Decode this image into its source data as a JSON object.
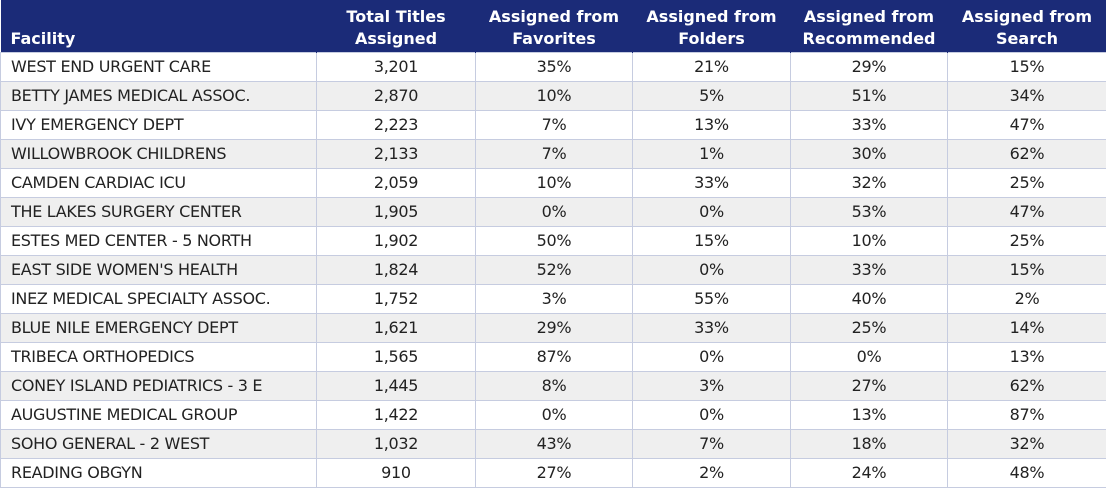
{
  "table": {
    "header": [
      "Facility",
      "Total Titles\nAssigned",
      "Assigned from\nFavorites",
      "Assigned from\nFolders",
      "Assigned from\nRecommended",
      "Assigned from\nSearch"
    ],
    "rows": [
      [
        "WEST END URGENT CARE",
        "3,201",
        "35%",
        "21%",
        "29%",
        "15%"
      ],
      [
        "BETTY JAMES MEDICAL ASSOC.",
        "2,870",
        "10%",
        "5%",
        "51%",
        "34%"
      ],
      [
        "IVY EMERGENCY DEPT",
        "2,223",
        "7%",
        "13%",
        "33%",
        "47%"
      ],
      [
        "WILLOWBROOK CHILDRENS",
        "2,133",
        "7%",
        "1%",
        "30%",
        "62%"
      ],
      [
        "CAMDEN CARDIAC ICU",
        "2,059",
        "10%",
        "33%",
        "32%",
        "25%"
      ],
      [
        "THE LAKES SURGERY CENTER",
        "1,905",
        "0%",
        "0%",
        "53%",
        "47%"
      ],
      [
        "ESTES MED CENTER - 5 NORTH",
        "1,902",
        "50%",
        "15%",
        "10%",
        "25%"
      ],
      [
        "EAST SIDE WOMEN'S HEALTH",
        "1,824",
        "52%",
        "0%",
        "33%",
        "15%"
      ],
      [
        "INEZ MEDICAL SPECIALTY ASSOC.",
        "1,752",
        "3%",
        "55%",
        "40%",
        "2%"
      ],
      [
        "BLUE NILE EMERGENCY DEPT",
        "1,621",
        "29%",
        "33%",
        "25%",
        "14%"
      ],
      [
        "TRIBECA ORTHOPEDICS",
        "1,565",
        "87%",
        "0%",
        "0%",
        "13%"
      ],
      [
        "CONEY ISLAND  PEDIATRICS - 3 E",
        "1,445",
        "8%",
        "3%",
        "27%",
        "62%"
      ],
      [
        "AUGUSTINE MEDICAL GROUP",
        "1,422",
        "0%",
        "0%",
        "13%",
        "87%"
      ],
      [
        "SOHO GENERAL - 2 WEST",
        "1,032",
        "43%",
        "7%",
        "18%",
        "32%"
      ],
      [
        "READING OBGYN",
        "910",
        "27%",
        "2%",
        "24%",
        "48%"
      ]
    ]
  }
}
